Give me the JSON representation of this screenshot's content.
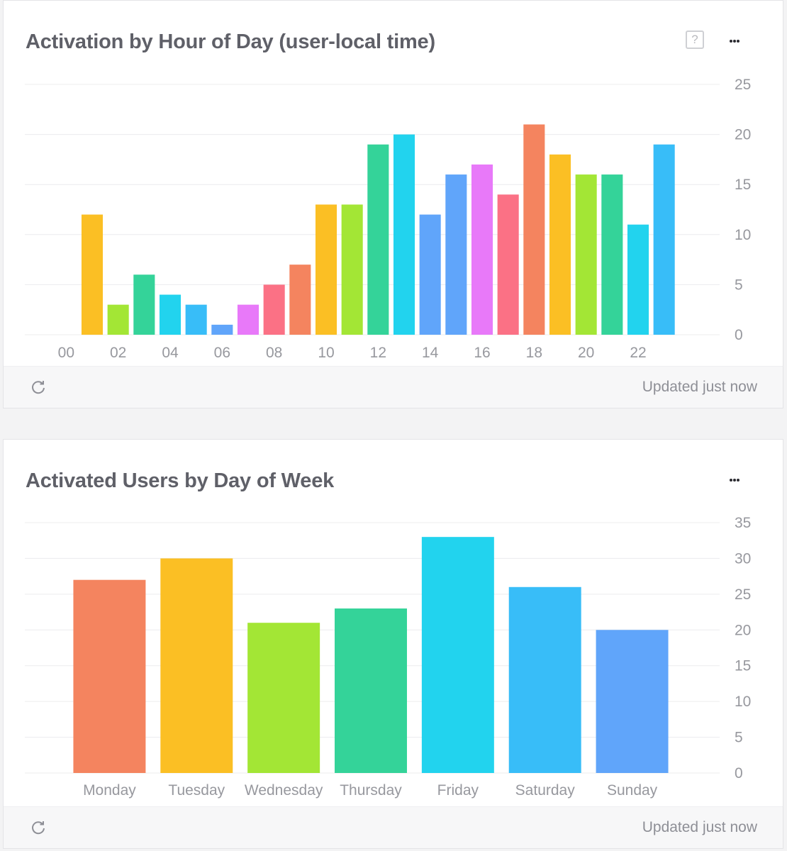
{
  "cards": [
    {
      "title": "Activation by Hour of Day (user-local time)",
      "has_help": true,
      "help_glyph": "?",
      "footer_text": "Updated just now"
    },
    {
      "title": "Activated Users by Day of Week",
      "has_help": false,
      "footer_text": "Updated just now"
    }
  ],
  "icons": {
    "help": "help-icon",
    "more": "more-options-icon",
    "refresh": "refresh-icon"
  },
  "chart_data": [
    {
      "type": "bar",
      "title": "Activation by Hour of Day (user-local time)",
      "categories": [
        "00",
        "01",
        "02",
        "03",
        "04",
        "05",
        "06",
        "07",
        "08",
        "09",
        "10",
        "11",
        "12",
        "13",
        "14",
        "15",
        "16",
        "17",
        "18",
        "19",
        "20",
        "21",
        "22",
        "23"
      ],
      "x_tick_labels": [
        "00",
        "02",
        "04",
        "06",
        "08",
        "10",
        "12",
        "14",
        "16",
        "18",
        "20",
        "22"
      ],
      "values": [
        0,
        12,
        3,
        6,
        4,
        3,
        1,
        3,
        5,
        7,
        13,
        13,
        19,
        20,
        12,
        16,
        17,
        14,
        21,
        18,
        16,
        16,
        11,
        19
      ],
      "colors": [
        "#fbbf24",
        "#fbbf24",
        "#a3e635",
        "#34d399",
        "#22d3ee",
        "#38bdf8",
        "#60a5fa",
        "#e879f9",
        "#fb7185",
        "#f4845f",
        "#fbbf24",
        "#a3e635",
        "#34d399",
        "#22d3ee",
        "#60a5fa",
        "#60a5fa",
        "#e879f9",
        "#fb7185",
        "#f4845f",
        "#fbbf24",
        "#a3e635",
        "#34d399",
        "#22d3ee",
        "#38bdf8"
      ],
      "y_ticks": [
        0,
        5,
        10,
        15,
        20,
        25
      ],
      "ylim": [
        0,
        25
      ],
      "y_axis_side": "right",
      "grid": true
    },
    {
      "type": "bar",
      "title": "Activated Users by Day of Week",
      "categories": [
        "Monday",
        "Tuesday",
        "Wednesday",
        "Thursday",
        "Friday",
        "Saturday",
        "Sunday"
      ],
      "values": [
        27,
        30,
        21,
        23,
        33,
        26,
        20
      ],
      "colors": [
        "#f4845f",
        "#fbbf24",
        "#a3e635",
        "#34d399",
        "#22d3ee",
        "#38bdf8",
        "#60a5fa"
      ],
      "y_ticks": [
        0,
        5,
        10,
        15,
        20,
        25,
        30,
        35
      ],
      "ylim": [
        0,
        35
      ],
      "y_axis_side": "right",
      "grid": true
    }
  ]
}
